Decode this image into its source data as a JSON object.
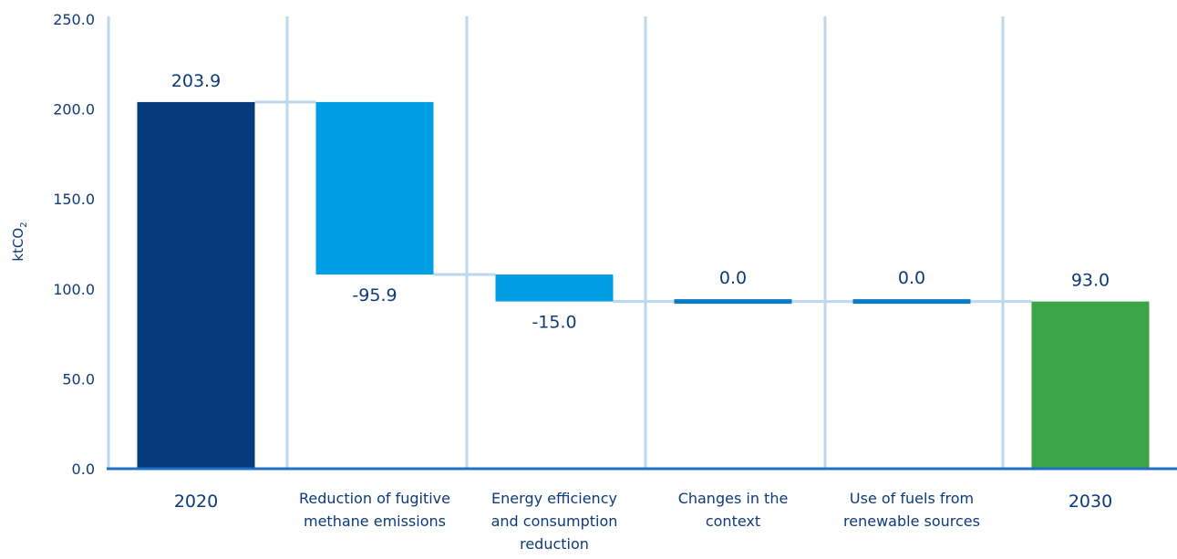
{
  "chart_data": {
    "type": "bar",
    "subtype": "waterfall",
    "ylabel_main": "ktCO",
    "ylabel_sub": "2",
    "ylim": [
      0,
      250
    ],
    "yticks": [
      "0.0",
      "50.0",
      "100.0",
      "150.0",
      "200.0",
      "250.0"
    ],
    "grid": "vertical",
    "categories": [
      {
        "lines": [
          "2020"
        ],
        "kind": "total"
      },
      {
        "lines": [
          "Reduction of fugitive",
          "methane emissions"
        ],
        "kind": "delta"
      },
      {
        "lines": [
          "Energy efficiency",
          "and consumption",
          "reduction"
        ],
        "kind": "delta"
      },
      {
        "lines": [
          "Changes in the",
          "context"
        ],
        "kind": "delta"
      },
      {
        "lines": [
          "Use of fuels from",
          "renewable sources"
        ],
        "kind": "delta"
      },
      {
        "lines": [
          "2030"
        ],
        "kind": "total"
      }
    ],
    "values": [
      203.9,
      -95.9,
      -15.0,
      0.0,
      0.0,
      93.0
    ],
    "value_labels": [
      "203.9",
      "-95.9",
      "-15.0",
      "0.0",
      "0.0",
      "93.0"
    ],
    "colors": {
      "start_total": "#043b7c",
      "decrease": "#009fe3",
      "zero": "#0a79c6",
      "end_total": "#3aa648",
      "connector": "#bcd7ee",
      "axis": "#1f6fc4",
      "text": "#0d3a7a"
    }
  }
}
